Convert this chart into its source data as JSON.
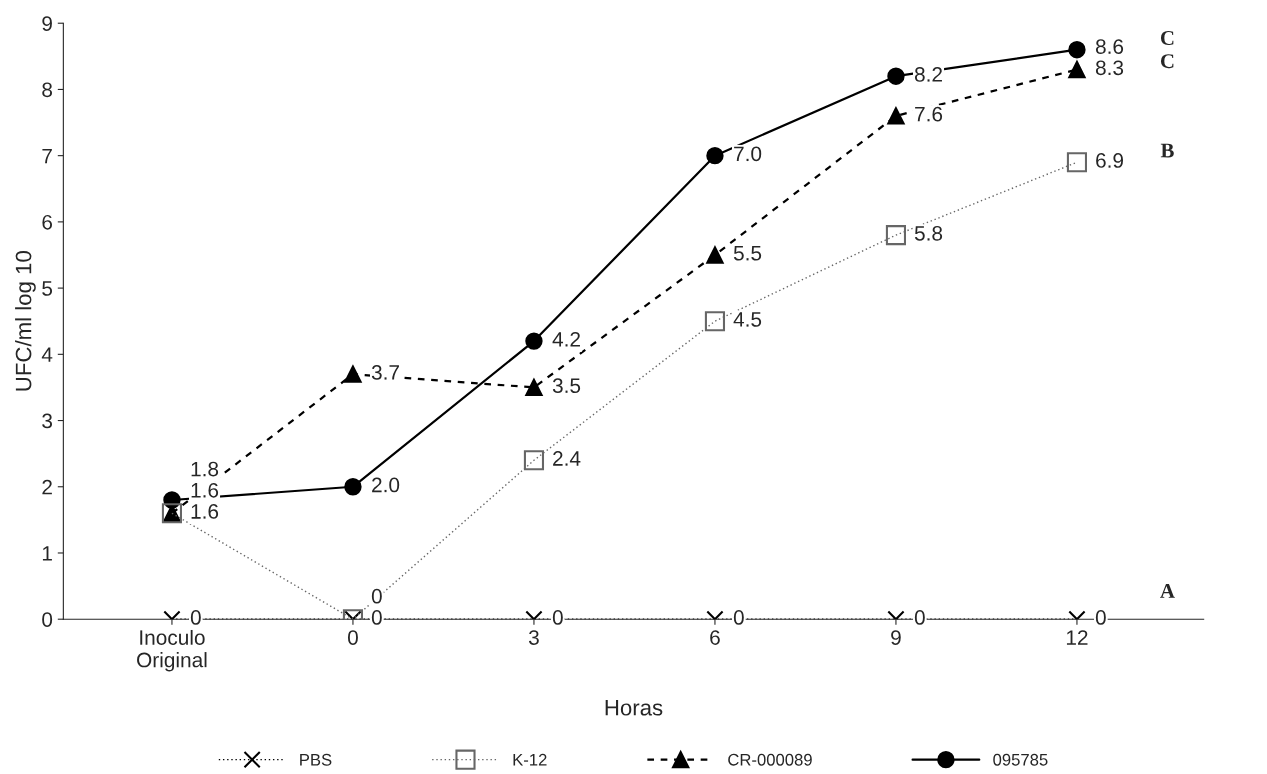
{
  "chart_data": {
    "type": "line",
    "xlabel": "Horas",
    "ylabel": "UFC/ml log 10",
    "categories": [
      "Inoculo\nOriginal",
      "0",
      "3",
      "6",
      "9",
      "12"
    ],
    "ylim": [
      0,
      9
    ],
    "yticks": [
      0,
      1,
      2,
      3,
      4,
      5,
      6,
      7,
      8,
      9
    ],
    "grid": false,
    "legend": "bottom",
    "series": [
      {
        "name": "PBS",
        "color": "#000000",
        "marker": "cross",
        "line_style": "dotted",
        "values": [
          0,
          0,
          0,
          0,
          0,
          0
        ],
        "value_labels": [
          "0",
          "0",
          "0",
          "0",
          "0",
          "0"
        ]
      },
      {
        "name": "K-12",
        "color": "#666666",
        "marker": "square",
        "line_style": "dotted",
        "values": [
          1.6,
          0,
          2.4,
          4.5,
          5.8,
          6.9
        ],
        "value_labels": [
          "1.6",
          "0",
          "2.4",
          "4.5",
          "5.8",
          "6.9"
        ]
      },
      {
        "name": "CR-000089",
        "color": "#000000",
        "marker": "triangle",
        "line_style": "dashed",
        "values": [
          1.6,
          3.7,
          3.5,
          5.5,
          7.6,
          8.3
        ],
        "value_labels": [
          "1.6",
          "3.7",
          "3.5",
          "5.5",
          "7.6",
          "8.3"
        ]
      },
      {
        "name": "095785",
        "color": "#000000",
        "marker": "circle",
        "line_style": "solid",
        "values": [
          1.8,
          2.0,
          4.2,
          7.0,
          8.2,
          8.6
        ],
        "value_labels": [
          "1.8",
          "2.0",
          "4.2",
          "7.0",
          "8.2",
          "8.6"
        ]
      }
    ],
    "annotations": [
      "C",
      "C",
      "B",
      "A"
    ]
  }
}
